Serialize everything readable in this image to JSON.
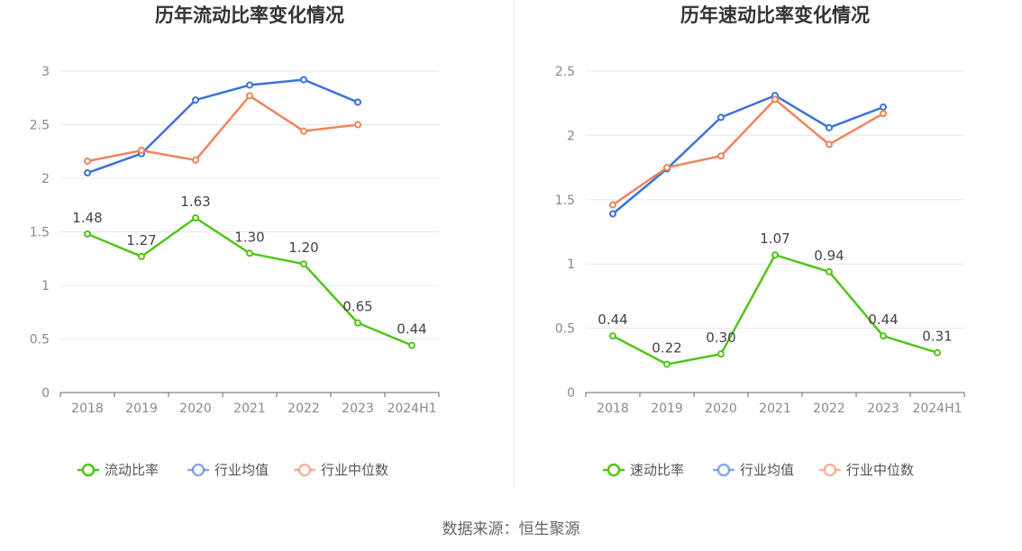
{
  "source_text": "数据来源：恒生聚源",
  "colors": {
    "green": "#52c41a",
    "blue": "#3a73d9",
    "orange": "#f0845a",
    "grid": "#e6e8ef",
    "axis": "#666666"
  },
  "chart_data": [
    {
      "type": "line",
      "title": "历年流动比率变化情况",
      "categories": [
        "2018",
        "2019",
        "2020",
        "2021",
        "2022",
        "2023",
        "2024H1"
      ],
      "ylim": [
        0,
        3
      ],
      "yticks": [
        "0",
        "0.5",
        "1",
        "1.5",
        "2",
        "2.5",
        "3"
      ],
      "ytick_values": [
        0,
        0.5,
        1,
        1.5,
        2,
        2.5,
        3
      ],
      "grid": true,
      "legend_position": "bottom",
      "series": [
        {
          "name": "流动比率",
          "color": "#52c41a",
          "values": [
            1.48,
            1.27,
            1.63,
            1.3,
            1.2,
            0.65,
            0.44
          ],
          "labels": [
            "1.48",
            "1.27",
            "1.63",
            "1.30",
            "1.20",
            "0.65",
            "0.44"
          ]
        },
        {
          "name": "行业均值",
          "color": "#3a73d9",
          "values": [
            2.05,
            2.23,
            2.73,
            2.87,
            2.92,
            2.71,
            null
          ]
        },
        {
          "name": "行业中位数",
          "color": "#f0845a",
          "values": [
            2.16,
            2.26,
            2.17,
            2.77,
            2.44,
            2.5,
            null
          ]
        }
      ]
    },
    {
      "type": "line",
      "title": "历年速动比率变化情况",
      "categories": [
        "2018",
        "2019",
        "2020",
        "2021",
        "2022",
        "2023",
        "2024H1"
      ],
      "ylim": [
        0,
        2.5
      ],
      "yticks": [
        "0",
        "0.5",
        "1",
        "1.5",
        "2",
        "2.5"
      ],
      "ytick_values": [
        0,
        0.5,
        1,
        1.5,
        2,
        2.5
      ],
      "grid": true,
      "legend_position": "bottom",
      "series": [
        {
          "name": "速动比率",
          "color": "#52c41a",
          "values": [
            0.44,
            0.22,
            0.3,
            1.07,
            0.94,
            0.44,
            0.31
          ],
          "labels": [
            "0.44",
            "0.22",
            "0.30",
            "1.07",
            "0.94",
            "0.44",
            "0.31"
          ]
        },
        {
          "name": "行业均值",
          "color": "#3a73d9",
          "values": [
            1.39,
            1.74,
            2.14,
            2.31,
            2.06,
            2.22,
            null
          ]
        },
        {
          "name": "行业中位数",
          "color": "#f0845a",
          "values": [
            1.46,
            1.75,
            1.84,
            2.28,
            1.93,
            2.17,
            null
          ]
        }
      ]
    }
  ]
}
